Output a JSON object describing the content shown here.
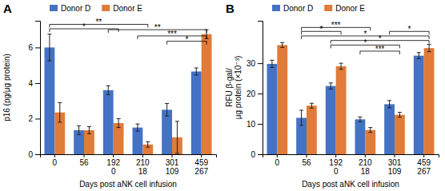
{
  "chart_data": [
    {
      "type": "bar",
      "title": "A",
      "xlabel": "Days post aNK cell infusion",
      "ylabel": "p16 (pg/μg protein)",
      "categories": [
        "0",
        "56",
        "192\n0",
        "210\n18",
        "301\n109",
        "459\n267"
      ],
      "series": [
        {
          "name": "Donor D",
          "color": "#4472C4",
          "values": [
            6.0,
            1.35,
            3.6,
            1.5,
            2.5,
            4.65
          ],
          "errors": [
            0.75,
            0.25,
            0.25,
            0.2,
            0.35,
            0.2
          ]
        },
        {
          "name": "Donor E",
          "color": "#E07B39",
          "values": [
            2.35,
            1.35,
            1.75,
            0.55,
            0.95,
            6.75
          ],
          "errors": [
            0.55,
            0.2,
            0.25,
            0.15,
            0.9,
            0.25
          ]
        }
      ],
      "ylim": [
        0,
        7.5
      ],
      "yticks": [
        0,
        2,
        4,
        6
      ],
      "grid": false,
      "legend": "top",
      "annotations": [
        {
          "x1": 0,
          "x2": 2,
          "y": 7.05,
          "label": "*"
        },
        {
          "x1": 0,
          "x2": 3,
          "y": 7.3,
          "label": "**"
        },
        {
          "x1": 2,
          "x2": 5,
          "y": 7.0,
          "label": "**"
        },
        {
          "x1": 3,
          "x2": 5,
          "y": 6.65,
          "label": "***"
        },
        {
          "x1": 4,
          "x2": 5,
          "y": 6.35,
          "label": "*"
        }
      ]
    },
    {
      "type": "bar",
      "title": "B",
      "xlabel": "Days post aNK cell infusion",
      "ylabel": "RFU β-gal/\nμg protein (×10⁻³)",
      "categories": [
        "0",
        "56",
        "192\n0",
        "210\n18",
        "301\n109",
        "459\n267"
      ],
      "series": [
        {
          "name": "Donor D",
          "color": "#4472C4",
          "values": [
            29.8,
            12.0,
            22.5,
            11.5,
            16.5,
            32.5
          ],
          "errors": [
            1.2,
            2.5,
            1.0,
            0.8,
            1.2,
            1.0
          ]
        },
        {
          "name": "Donor E",
          "color": "#E07B39",
          "values": [
            36.0,
            16.0,
            29.0,
            8.0,
            13.0,
            35.0
          ],
          "errors": [
            0.8,
            0.8,
            1.0,
            0.8,
            0.8,
            1.2
          ]
        }
      ],
      "ylim": [
        0,
        44
      ],
      "yticks": [
        0,
        10,
        20,
        30
      ],
      "grid": false,
      "legend": "top",
      "annotations": [
        {
          "x1": 1,
          "x2": 2,
          "y": 40.5,
          "label": "*"
        },
        {
          "x1": 1,
          "x2": 3,
          "y": 41.8,
          "label": "***"
        },
        {
          "x1": 1,
          "x2": 5,
          "y": 39.0,
          "label": "*"
        },
        {
          "x1": 2,
          "x2": 5,
          "y": 37.5,
          "label": "*"
        },
        {
          "x1": 2,
          "x2": 4,
          "y": 36.0,
          "label": "*"
        },
        {
          "x1": 3,
          "x2": 4,
          "y": 34.0,
          "label": "***"
        },
        {
          "x1": 4,
          "x2": 5,
          "y": 40.5,
          "label": "*"
        }
      ]
    }
  ]
}
